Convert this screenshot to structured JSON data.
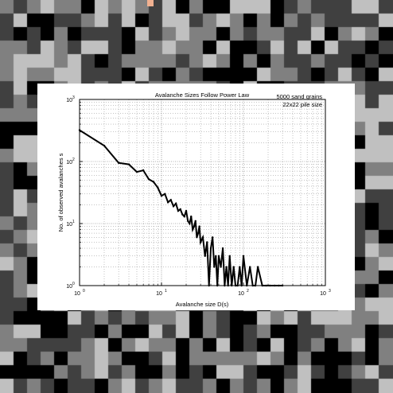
{
  "sandpile": {
    "grid_size": 29,
    "palette": [
      "#000000",
      "#404040",
      "#808080",
      "#c0c0c0"
    ],
    "marker_color": "#f0b090"
  },
  "chart_data": {
    "type": "line",
    "title": "Avalanche Sizes Follow Power Law",
    "annotation": [
      "5000 sand grains",
      "22x22 pile size"
    ],
    "xlabel": "Avalanche size D(s)",
    "ylabel": "No. of observed avalanches s",
    "xscale": "log",
    "yscale": "log",
    "xlim": [
      1,
      1000
    ],
    "ylim": [
      1,
      1000
    ],
    "x_ticks": [
      "10",
      "10",
      "10",
      "10"
    ],
    "x_tick_exponents": [
      "0",
      "1",
      "2",
      "3"
    ],
    "y_ticks": [
      "10",
      "10",
      "10",
      "10"
    ],
    "y_tick_exponents": [
      "0",
      "1",
      "2",
      "3"
    ],
    "grid": true,
    "series": [
      {
        "x": [
          1,
          2,
          3,
          4,
          5,
          6,
          7,
          8,
          9,
          10,
          11,
          12,
          13,
          14,
          15,
          16,
          17,
          18,
          19,
          20,
          21,
          22,
          23,
          24,
          25,
          26,
          27,
          28,
          29,
          30,
          32,
          34,
          36,
          38,
          40,
          42,
          44,
          46,
          48,
          50,
          53,
          56,
          59,
          62,
          65,
          68,
          72,
          76,
          80,
          85,
          90,
          95,
          100,
          110,
          120,
          130,
          140,
          150,
          170,
          190,
          210,
          240,
          270,
          300
        ],
        "y": [
          320,
          180,
          95,
          90,
          68,
          72,
          52,
          47,
          38,
          28,
          30,
          22,
          24,
          19,
          21,
          16,
          17,
          14,
          13,
          16,
          11,
          10,
          13,
          8,
          9,
          11,
          6,
          7,
          9,
          5,
          6,
          3,
          5,
          1,
          4,
          6,
          2,
          3,
          1,
          3,
          2,
          4,
          1,
          2,
          1,
          3,
          1,
          2,
          1,
          1,
          2,
          1,
          3,
          1,
          2,
          1,
          1,
          2,
          1,
          1,
          1,
          1,
          1,
          1
        ]
      }
    ]
  }
}
